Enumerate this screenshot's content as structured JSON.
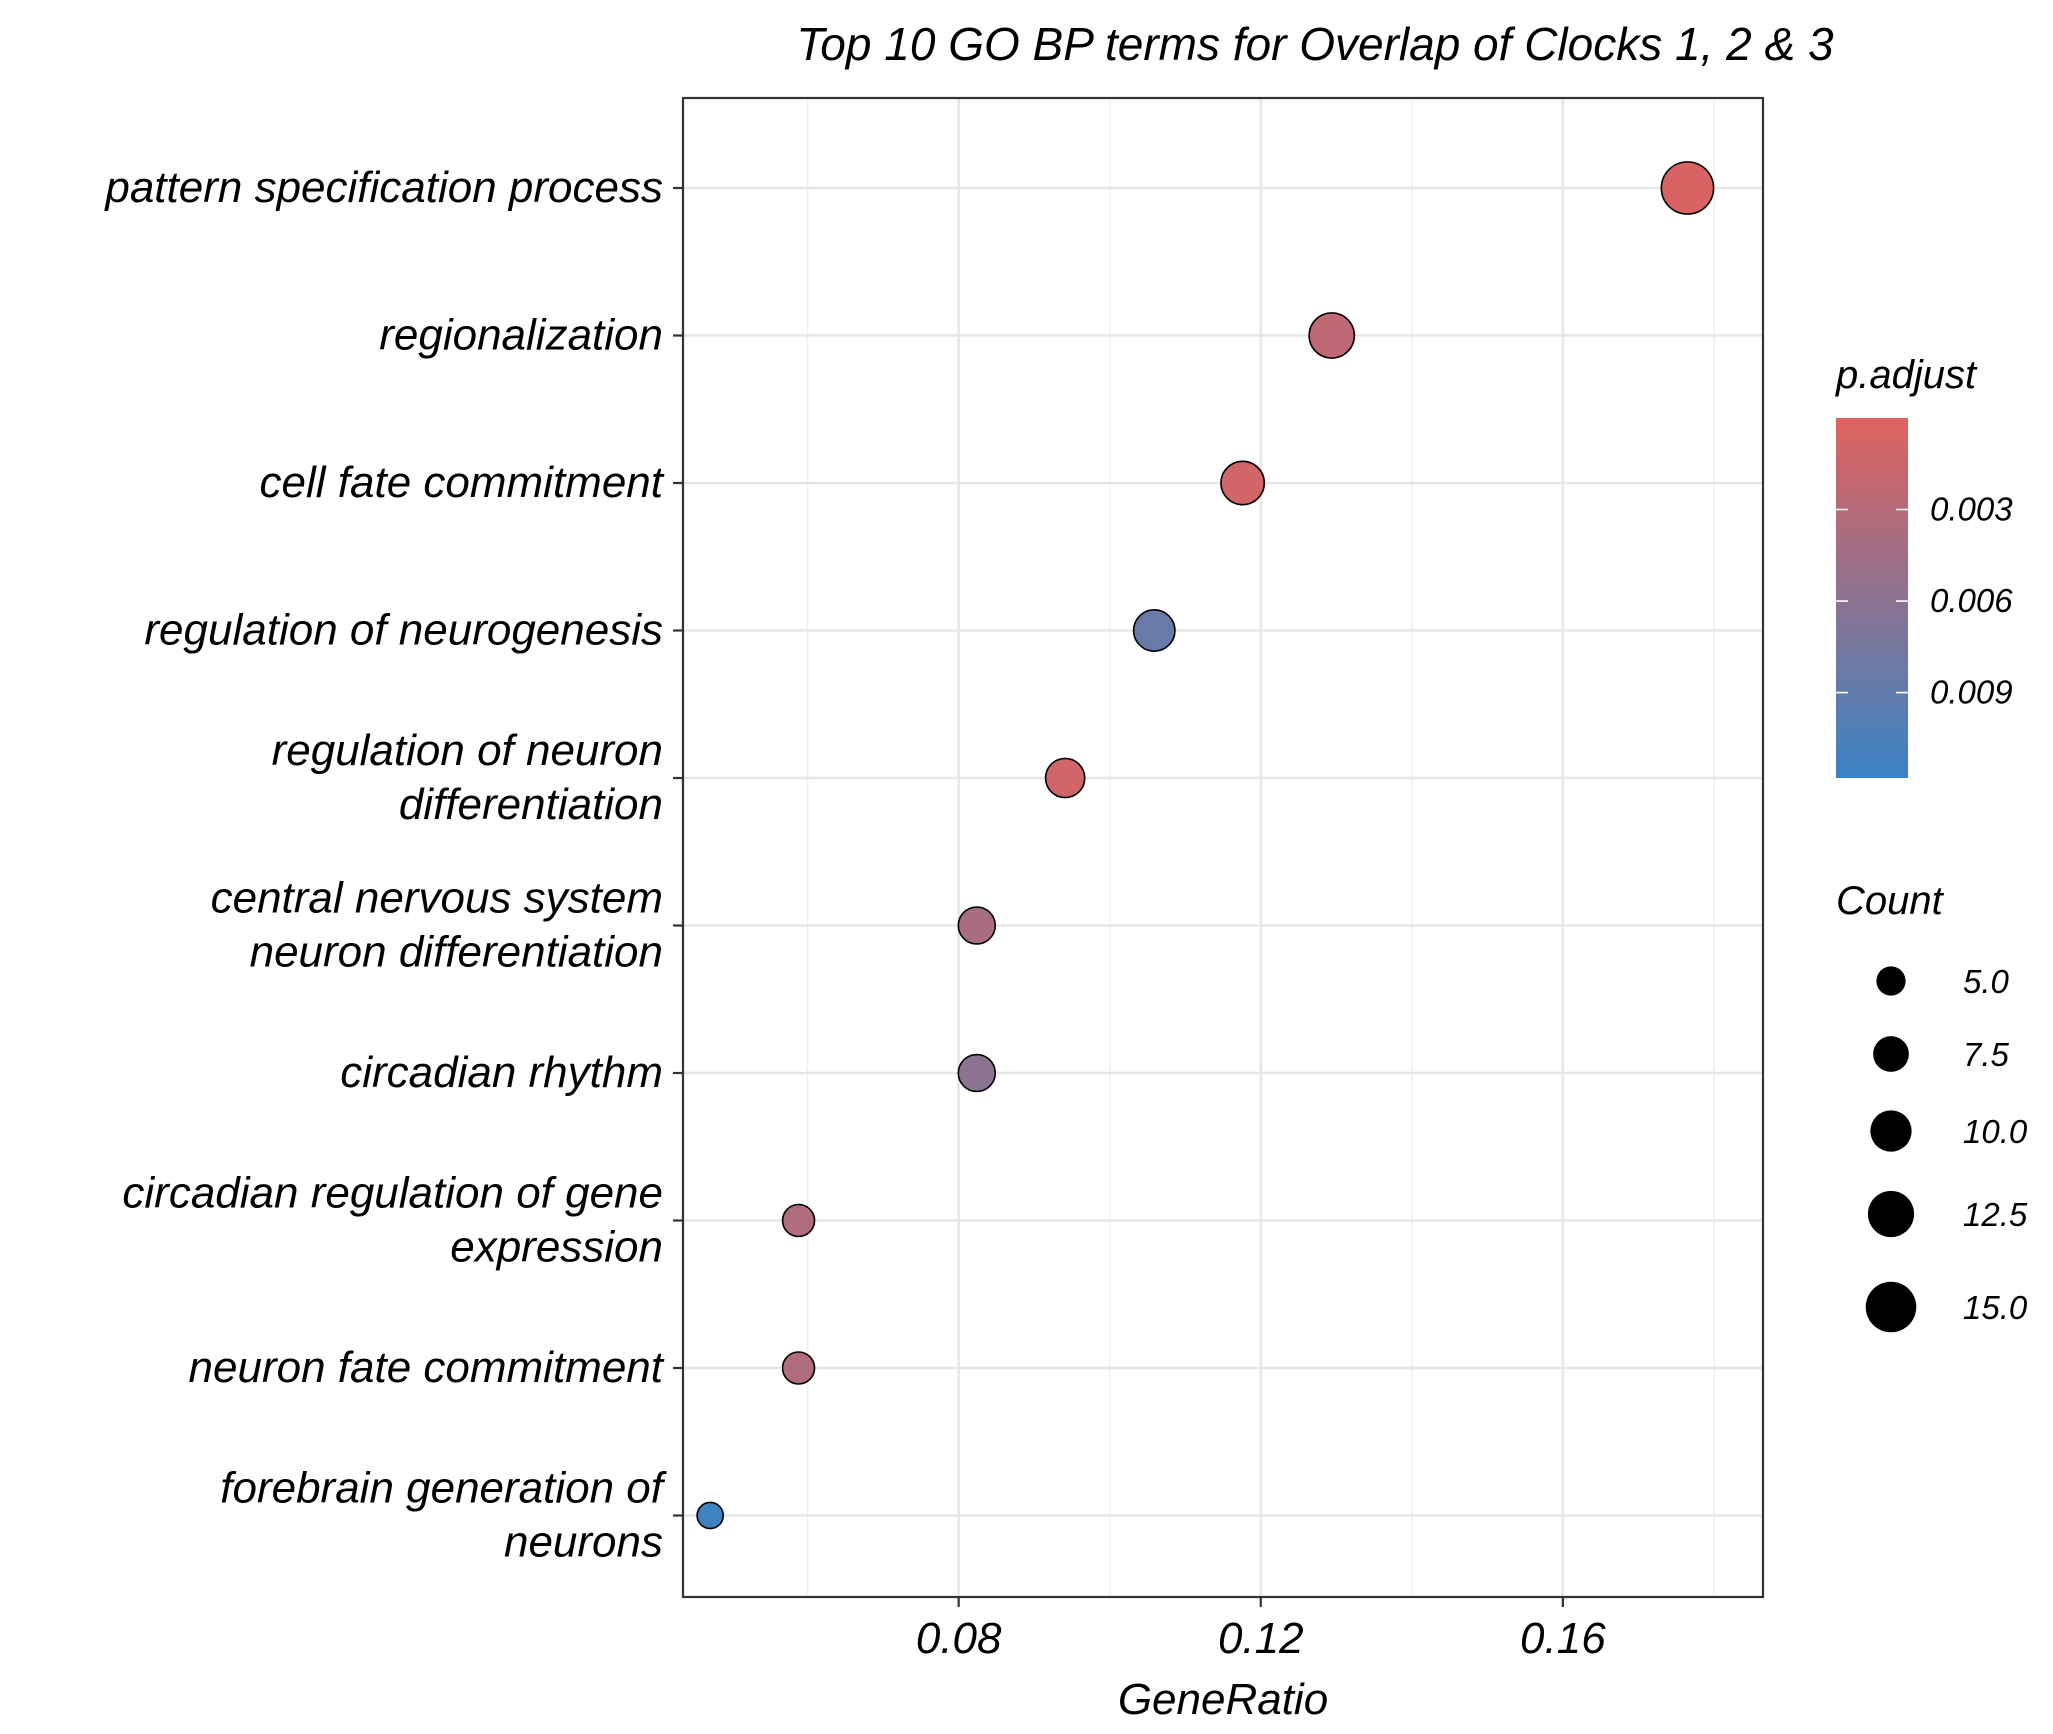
{
  "chart_data": {
    "type": "scatter",
    "title": "Top 10 GO BP terms for Overlap of Clocks 1, 2 & 3",
    "xlabel": "GeneRatio",
    "ylabel": "",
    "xlim": [
      0.0435,
      0.1865
    ],
    "x_ticks": [
      0.08,
      0.12,
      0.16
    ],
    "x_tick_labels": [
      "0.08",
      "0.12",
      "0.16"
    ],
    "grid": true,
    "terms": [
      {
        "label": [
          "pattern specification process"
        ],
        "gene_ratio": 0.1765,
        "count": 16,
        "p_adjust": 0.0005
      },
      {
        "label": [
          "regionalization"
        ],
        "gene_ratio": 0.1294,
        "count": 12,
        "p_adjust": 0.0025
      },
      {
        "label": [
          "cell fate commitment"
        ],
        "gene_ratio": 0.1176,
        "count": 11,
        "p_adjust": 0.001
      },
      {
        "label": [
          "regulation of neurogenesis"
        ],
        "gene_ratio": 0.1059,
        "count": 10,
        "p_adjust": 0.0085
      },
      {
        "label": [
          "regulation of neuron",
          "differentiation"
        ],
        "gene_ratio": 0.0941,
        "count": 9,
        "p_adjust": 0.0012
      },
      {
        "label": [
          "central nervous system",
          "neuron differentiation"
        ],
        "gene_ratio": 0.0824,
        "count": 8,
        "p_adjust": 0.004
      },
      {
        "label": [
          "circadian rhythm"
        ],
        "gene_ratio": 0.0824,
        "count": 8,
        "p_adjust": 0.006
      },
      {
        "label": [
          "circadian regulation of gene",
          "expression"
        ],
        "gene_ratio": 0.0588,
        "count": 6,
        "p_adjust": 0.0035
      },
      {
        "label": [
          "neuron fate commitment"
        ],
        "gene_ratio": 0.0588,
        "count": 6,
        "p_adjust": 0.0035
      },
      {
        "label": [
          "forebrain generation of",
          "neurons"
        ],
        "gene_ratio": 0.0471,
        "count": 4,
        "p_adjust": 0.0115
      }
    ],
    "color_legend": {
      "title": "p.adjust",
      "range": [
        0,
        0.0118
      ],
      "ticks": [
        0.003,
        0.006,
        0.009
      ],
      "tick_labels": [
        "0.003",
        "0.006",
        "0.009"
      ],
      "low_color": "#E0625E",
      "high_color": "#3A83C4"
    },
    "size_legend": {
      "title": "Count",
      "values": [
        5,
        7.5,
        10,
        12.5,
        15
      ],
      "labels": [
        "5.0",
        "7.5",
        "10.0",
        "12.5",
        "15.0"
      ]
    },
    "legend_position": "right"
  }
}
